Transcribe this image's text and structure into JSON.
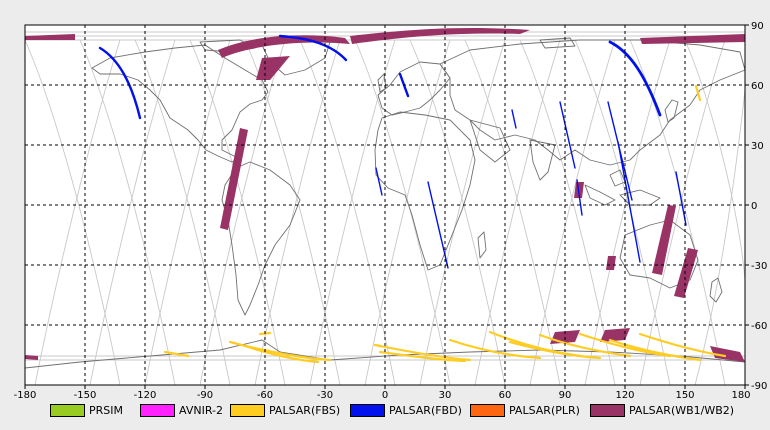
{
  "map": {
    "lon_ticks": [
      "-180",
      "-150",
      "-120",
      "-90",
      "-60",
      "-30",
      "0",
      "30",
      "60",
      "90",
      "120",
      "150",
      "180"
    ],
    "lat_ticks": [
      "90",
      "60",
      "30",
      "0",
      "-30",
      "-60",
      "-90"
    ],
    "colors": {
      "ocean": "#ffffff",
      "coast": "#707070",
      "orbit": "#c8c8c8",
      "grid": "#000000",
      "frame_bg": "#ececec"
    }
  },
  "legend": [
    {
      "label": "PRSIM",
      "color": "#99cc22"
    },
    {
      "label": "AVNIR-2",
      "color": "#ff22ff"
    },
    {
      "label": "PALSAR(FBS)",
      "color": "#ffcc22"
    },
    {
      "label": "PALSAR(FBD)",
      "color": "#0011ee"
    },
    {
      "label": "PALSAR(PLR)",
      "color": "#ff6611"
    },
    {
      "label": "PALSAR(WB1/WB2)",
      "color": "#993366"
    }
  ]
}
